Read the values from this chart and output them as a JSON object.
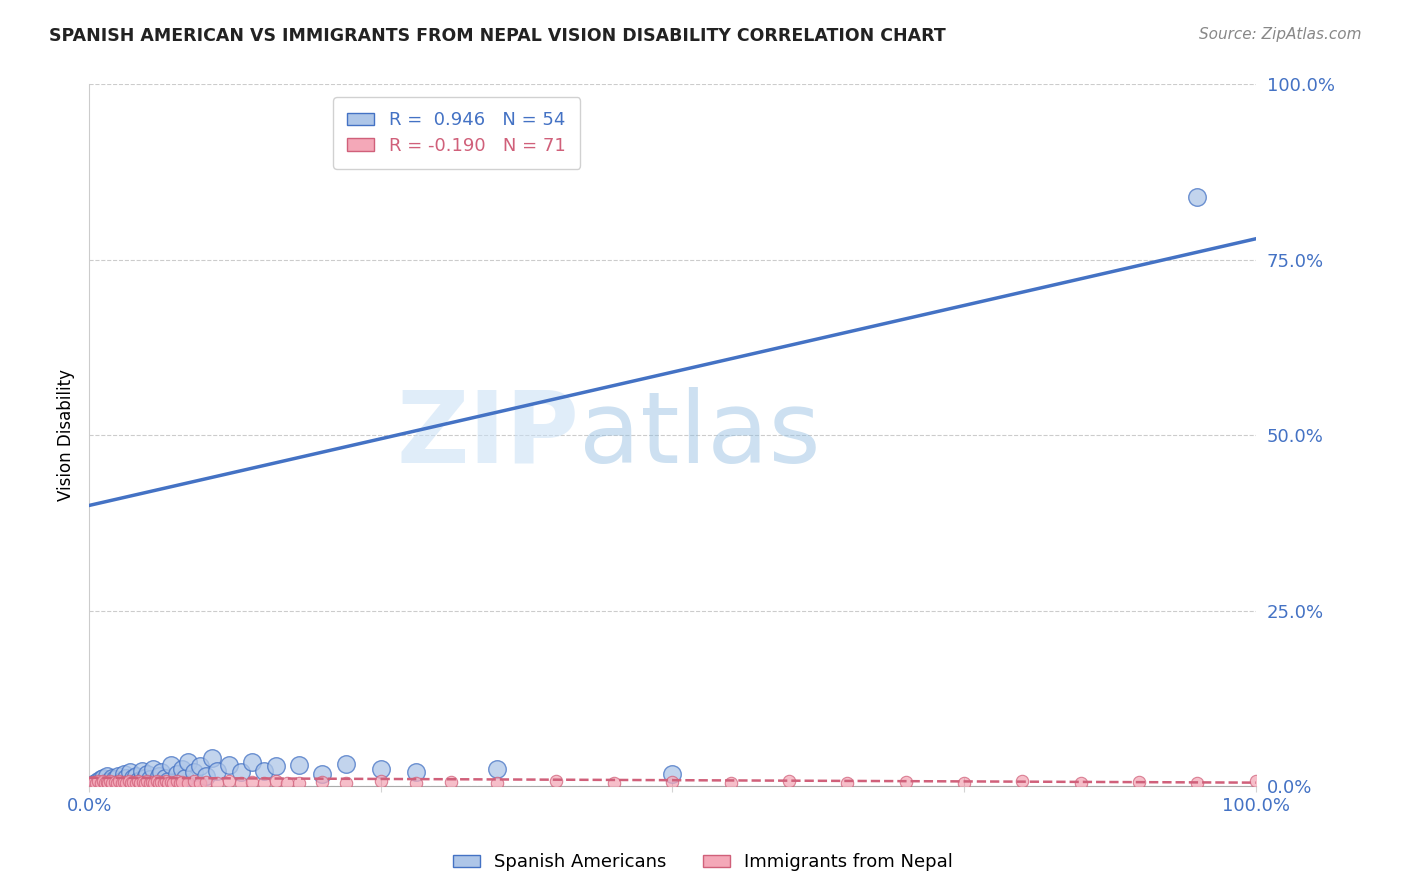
{
  "title": "SPANISH AMERICAN VS IMMIGRANTS FROM NEPAL VISION DISABILITY CORRELATION CHART",
  "source": "Source: ZipAtlas.com",
  "ylabel": "Vision Disability",
  "ytick_labels": [
    "0.0%",
    "25.0%",
    "50.0%",
    "75.0%",
    "100.0%"
  ],
  "ytick_values": [
    0.0,
    0.25,
    0.5,
    0.75,
    1.0
  ],
  "xlim": [
    0.0,
    1.0
  ],
  "ylim": [
    0.0,
    1.0
  ],
  "blue_R": 0.946,
  "blue_N": 54,
  "pink_R": -0.19,
  "pink_N": 71,
  "blue_color": "#aec6e8",
  "blue_line_color": "#4472c4",
  "pink_color": "#f4a8b8",
  "pink_line_color": "#d0607a",
  "watermark_zip": "ZIP",
  "watermark_atlas": "atlas",
  "blue_line_x0": 0.0,
  "blue_line_y0": 0.4,
  "blue_line_x1": 1.0,
  "blue_line_y1": 0.78,
  "pink_line_x0": 0.0,
  "pink_line_y0": 0.012,
  "pink_line_x1": 1.0,
  "pink_line_y1": 0.005,
  "blue_scatter_x": [
    0.005,
    0.008,
    0.01,
    0.012,
    0.015,
    0.015,
    0.018,
    0.02,
    0.022,
    0.025,
    0.025,
    0.028,
    0.03,
    0.03,
    0.032,
    0.035,
    0.035,
    0.038,
    0.04,
    0.042,
    0.045,
    0.045,
    0.048,
    0.05,
    0.052,
    0.055,
    0.055,
    0.06,
    0.062,
    0.065,
    0.068,
    0.07,
    0.075,
    0.08,
    0.082,
    0.085,
    0.09,
    0.095,
    0.1,
    0.105,
    0.11,
    0.12,
    0.13,
    0.14,
    0.15,
    0.16,
    0.18,
    0.2,
    0.22,
    0.25,
    0.28,
    0.35,
    0.5,
    0.95
  ],
  "blue_scatter_y": [
    0.005,
    0.008,
    0.01,
    0.012,
    0.006,
    0.015,
    0.008,
    0.012,
    0.01,
    0.005,
    0.015,
    0.008,
    0.01,
    0.018,
    0.012,
    0.006,
    0.02,
    0.012,
    0.015,
    0.008,
    0.01,
    0.022,
    0.012,
    0.018,
    0.01,
    0.005,
    0.025,
    0.015,
    0.02,
    0.012,
    0.008,
    0.03,
    0.018,
    0.025,
    0.012,
    0.035,
    0.02,
    0.028,
    0.015,
    0.04,
    0.022,
    0.03,
    0.02,
    0.035,
    0.022,
    0.028,
    0.03,
    0.018,
    0.032,
    0.025,
    0.02,
    0.025,
    0.018,
    0.84
  ],
  "pink_scatter_x": [
    0.002,
    0.004,
    0.006,
    0.008,
    0.01,
    0.012,
    0.014,
    0.015,
    0.016,
    0.018,
    0.02,
    0.022,
    0.024,
    0.026,
    0.028,
    0.03,
    0.032,
    0.034,
    0.036,
    0.038,
    0.04,
    0.042,
    0.044,
    0.046,
    0.048,
    0.05,
    0.052,
    0.054,
    0.056,
    0.058,
    0.06,
    0.062,
    0.064,
    0.066,
    0.068,
    0.07,
    0.072,
    0.075,
    0.078,
    0.08,
    0.085,
    0.09,
    0.095,
    0.1,
    0.11,
    0.12,
    0.13,
    0.14,
    0.15,
    0.16,
    0.18,
    0.2,
    0.22,
    0.25,
    0.28,
    0.31,
    0.35,
    0.4,
    0.45,
    0.5,
    0.55,
    0.6,
    0.65,
    0.7,
    0.75,
    0.8,
    0.85,
    0.9,
    0.95,
    1.0,
    0.17
  ],
  "pink_scatter_y": [
    0.004,
    0.006,
    0.005,
    0.007,
    0.004,
    0.008,
    0.005,
    0.006,
    0.004,
    0.007,
    0.005,
    0.006,
    0.004,
    0.008,
    0.005,
    0.006,
    0.004,
    0.007,
    0.005,
    0.006,
    0.004,
    0.008,
    0.005,
    0.006,
    0.004,
    0.007,
    0.005,
    0.006,
    0.004,
    0.008,
    0.005,
    0.006,
    0.004,
    0.007,
    0.005,
    0.006,
    0.004,
    0.008,
    0.005,
    0.006,
    0.004,
    0.007,
    0.005,
    0.006,
    0.004,
    0.008,
    0.005,
    0.006,
    0.004,
    0.007,
    0.005,
    0.006,
    0.004,
    0.008,
    0.005,
    0.006,
    0.004,
    0.007,
    0.005,
    0.006,
    0.004,
    0.008,
    0.005,
    0.006,
    0.004,
    0.007,
    0.005,
    0.006,
    0.004,
    0.008,
    0.005
  ]
}
